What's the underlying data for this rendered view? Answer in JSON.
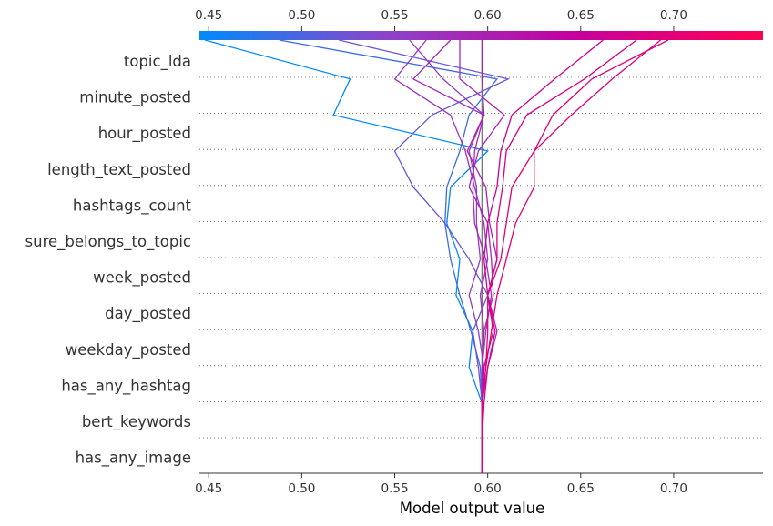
{
  "chart_data": {
    "type": "line",
    "plot_kind": "shap-decision-plot",
    "xlabel": "Model output value",
    "xlim": [
      0.445,
      0.748
    ],
    "xticks": [
      0.45,
      0.5,
      0.55,
      0.6,
      0.65,
      0.7
    ],
    "xtick_labels": [
      "0.45",
      "0.50",
      "0.55",
      "0.60",
      "0.65",
      "0.70"
    ],
    "base_value": 0.597,
    "grid": "dotted-horizontal",
    "colorbar": {
      "position": "top",
      "min": 0.445,
      "max": 0.748,
      "colors": [
        "#008bfb",
        "#8d43c9",
        "#c5009e",
        "#ff0052"
      ]
    },
    "features": [
      "topic_lda",
      "minute_posted",
      "hour_posted",
      "length_text_posted",
      "hashtags_count",
      "sure_belongs_to_topic",
      "week_posted",
      "day_posted",
      "weekday_posted",
      "has_any_hashtag",
      "bert_keywords",
      "has_any_image"
    ],
    "series": [
      {
        "values": [
          0.448,
          0.526,
          0.517,
          0.6,
          0.58,
          0.578,
          0.585,
          0.583,
          0.592,
          0.59,
          0.597,
          0.597,
          0.597
        ]
      },
      {
        "values": [
          0.488,
          0.605,
          0.59,
          0.585,
          0.578,
          0.577,
          0.58,
          0.585,
          0.591,
          0.596,
          0.597,
          0.597,
          0.597
        ]
      },
      {
        "values": [
          0.52,
          0.611,
          0.57,
          0.55,
          0.56,
          0.577,
          0.59,
          0.6,
          0.592,
          0.595,
          0.597,
          0.597,
          0.597
        ]
      },
      {
        "values": [
          0.558,
          0.576,
          0.598,
          0.59,
          0.594,
          0.594,
          0.596,
          0.59,
          0.595,
          0.598,
          0.597,
          0.597,
          0.597
        ]
      },
      {
        "values": [
          0.567,
          0.55,
          0.58,
          0.588,
          0.593,
          0.598,
          0.6,
          0.596,
          0.598,
          0.597,
          0.597,
          0.597,
          0.597
        ]
      },
      {
        "values": [
          0.58,
          0.56,
          0.598,
          0.593,
          0.592,
          0.593,
          0.599,
          0.602,
          0.599,
          0.597,
          0.597,
          0.597,
          0.597
        ]
      },
      {
        "values": [
          0.585,
          0.585,
          0.609,
          0.595,
          0.59,
          0.6,
          0.602,
          0.603,
          0.598,
          0.597,
          0.597,
          0.597,
          0.597
        ]
      },
      {
        "values": [
          0.597,
          0.597,
          0.598,
          0.589,
          0.599,
          0.601,
          0.605,
          0.6,
          0.605,
          0.6,
          0.597,
          0.597,
          0.597
        ]
      },
      {
        "values": [
          0.662,
          0.636,
          0.613,
          0.607,
          0.605,
          0.6,
          0.598,
          0.6,
          0.604,
          0.6,
          0.598,
          0.597,
          0.597
        ]
      },
      {
        "values": [
          0.68,
          0.652,
          0.621,
          0.61,
          0.608,
          0.605,
          0.605,
          0.6,
          0.603,
          0.598,
          0.597,
          0.597,
          0.597
        ]
      },
      {
        "values": [
          0.693,
          0.667,
          0.645,
          0.625,
          0.625,
          0.615,
          0.61,
          0.605,
          0.602,
          0.599,
          0.597,
          0.597,
          0.597
        ]
      },
      {
        "values": [
          0.697,
          0.656,
          0.635,
          0.625,
          0.613,
          0.61,
          0.607,
          0.6,
          0.6,
          0.599,
          0.597,
          0.597,
          0.597
        ]
      }
    ]
  }
}
